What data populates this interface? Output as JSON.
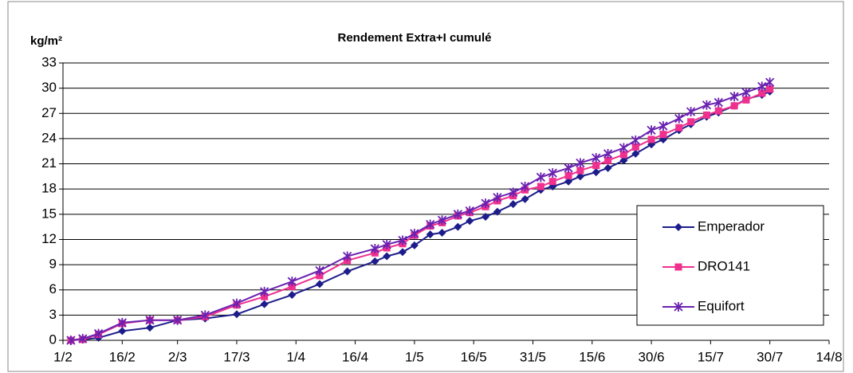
{
  "chart_data": {
    "type": "line",
    "title": "Rendement Extra+I cumulé",
    "y_label": "kg/m²",
    "x": [
      "3/2",
      "6/2",
      "10/2",
      "16/2",
      "23/2",
      "2/3",
      "9/3",
      "17/3",
      "24/3",
      "31/3",
      "7/4",
      "14/4",
      "21/4",
      "24/4",
      "28/4",
      "1/5",
      "5/5",
      "8/5",
      "12/5",
      "15/5",
      "19/5",
      "22/5",
      "26/5",
      "29/5",
      "2/6",
      "5/6",
      "9/6",
      "12/6",
      "16/6",
      "19/6",
      "23/6",
      "26/6",
      "30/6",
      "3/7",
      "7/7",
      "10/7",
      "14/7",
      "17/7",
      "21/7",
      "24/7",
      "28/7",
      "30/7"
    ],
    "series": [
      {
        "name": "Emperador",
        "color": "#1c1c8a",
        "marker": "diamond",
        "values": [
          0,
          0.1,
          0.3,
          1.1,
          1.5,
          2.4,
          2.6,
          3.1,
          4.3,
          5.4,
          6.7,
          8.2,
          9.4,
          10,
          10.5,
          11.3,
          12.6,
          12.8,
          13.5,
          14.2,
          14.7,
          15.3,
          16.2,
          16.8,
          17.9,
          18.3,
          18.9,
          19.5,
          20,
          20.5,
          21.4,
          22.2,
          23.3,
          23.9,
          25,
          25.7,
          26.6,
          27.1,
          27.9,
          28.7,
          29.2,
          29.6
        ]
      },
      {
        "name": "DRO141",
        "color": "#f0308f",
        "marker": "square",
        "values": [
          0,
          0.1,
          0.7,
          2,
          2.4,
          2.4,
          2.8,
          4.2,
          5.2,
          6.4,
          7.7,
          9.5,
          10.4,
          11,
          11.5,
          12.5,
          13.6,
          14,
          14.8,
          15.2,
          15.9,
          16.6,
          17.2,
          17.9,
          18.3,
          18.9,
          19.6,
          20.2,
          20.8,
          21.4,
          22.1,
          23,
          23.9,
          24.5,
          25.3,
          26,
          26.8,
          27.3,
          27.9,
          28.6,
          29.4,
          29.9
        ]
      },
      {
        "name": "Equifort",
        "color": "#6a22b0",
        "marker": "star",
        "values": [
          0,
          0.2,
          0.8,
          2.1,
          2.4,
          2.4,
          3,
          4.4,
          5.8,
          7,
          8.3,
          10,
          10.9,
          11.4,
          11.9,
          12.7,
          13.8,
          14.3,
          15,
          15.4,
          16.3,
          17,
          17.6,
          18.3,
          19.4,
          19.9,
          20.5,
          21.1,
          21.7,
          22.2,
          22.9,
          23.8,
          25,
          25.5,
          26.4,
          27.2,
          28,
          28.3,
          29,
          29.5,
          30.2,
          30.7
        ]
      }
    ],
    "xlim": [
      "1/2",
      "14/8"
    ],
    "xticks": [
      "1/2",
      "16/2",
      "2/3",
      "17/3",
      "1/4",
      "16/4",
      "1/5",
      "16/5",
      "31/5",
      "15/6",
      "30/6",
      "15/7",
      "30/7",
      "14/8"
    ],
    "ylim": [
      0,
      33
    ],
    "yticks": [
      0,
      3,
      6,
      9,
      12,
      15,
      18,
      21,
      24,
      27,
      30,
      33
    ],
    "grid": true,
    "legend": "lower right"
  }
}
